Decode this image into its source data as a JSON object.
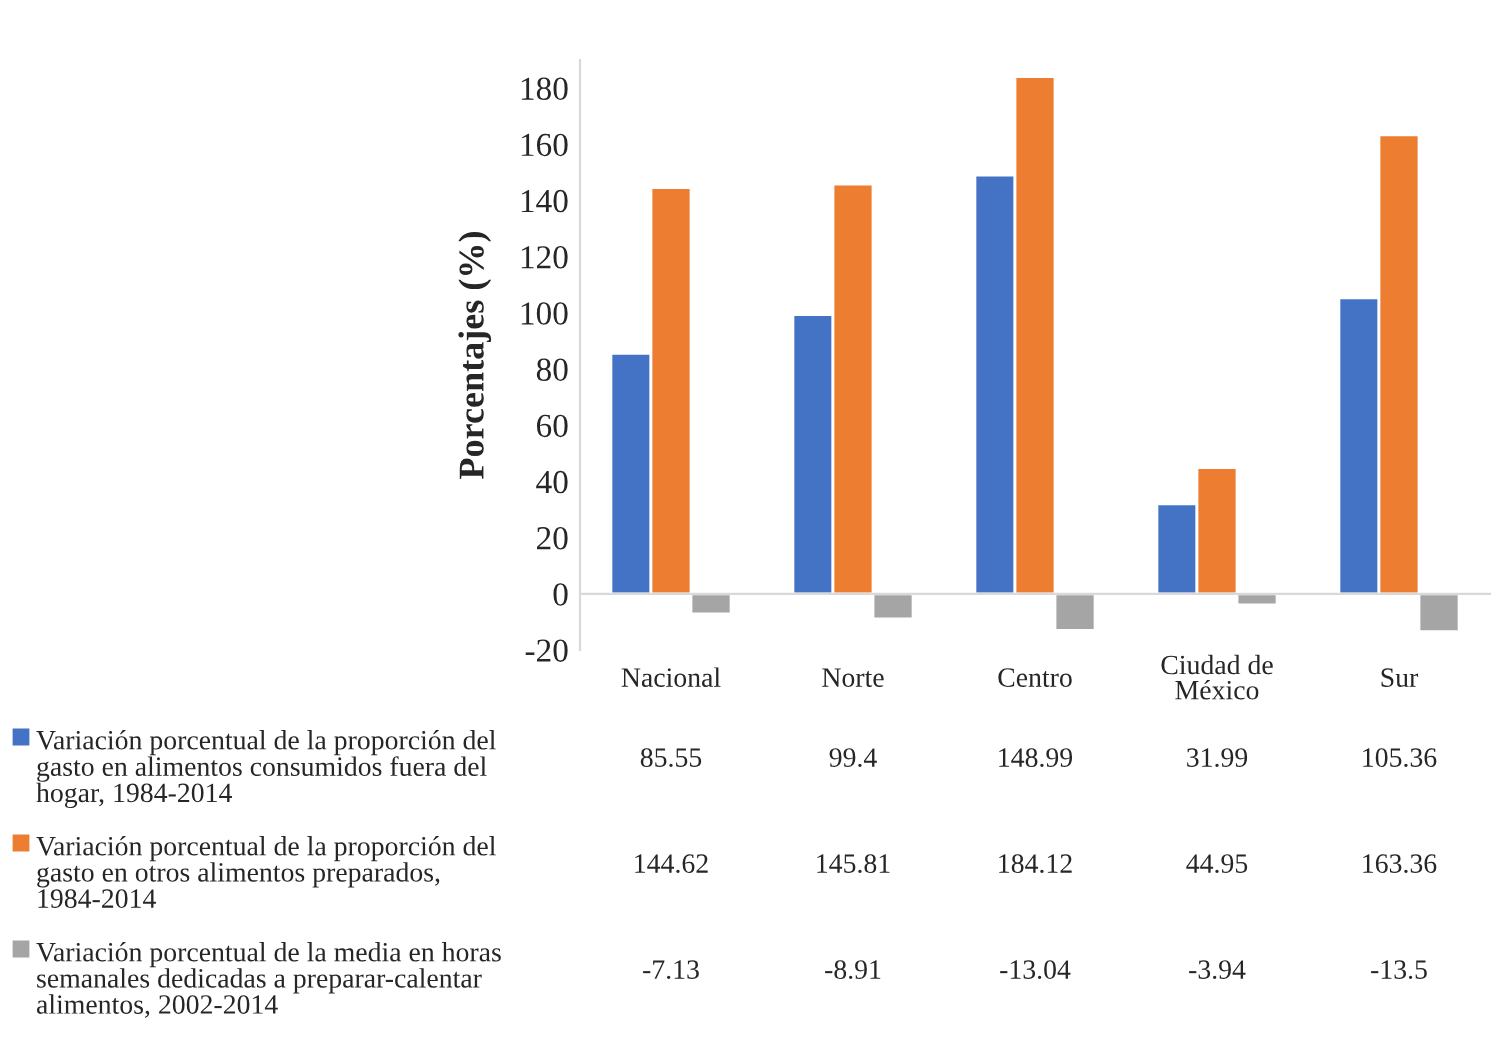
{
  "chart_data": {
    "type": "bar",
    "ylabel": "Porcentajes (%)",
    "categories": [
      "Nacional",
      "Norte",
      "Centro",
      "Ciudad de México",
      "Sur"
    ],
    "series": [
      {
        "name": "Variación porcentual de la proporción del gasto en alimentos consumidos fuera del hogar, 1984-2014",
        "color": "#4472c4",
        "values": [
          85.55,
          99.4,
          148.99,
          31.99,
          105.36
        ]
      },
      {
        "name": "Variación porcentual de la proporción del gasto en otros alimentos preparados, 1984-2014",
        "color": "#ed7d31",
        "values": [
          144.62,
          145.81,
          184.12,
          44.95,
          163.36
        ]
      },
      {
        "name": "Variación porcentual de la media en horas semanales dedicadas a preparar-calentar alimentos, 2002-2014",
        "color": "#a5a5a5",
        "values": [
          -7.13,
          -8.91,
          -13.04,
          -3.94,
          -13.5
        ]
      }
    ],
    "ylim": [
      -20,
      190
    ],
    "yticks": [
      -20,
      0,
      20,
      40,
      60,
      80,
      100,
      120,
      140,
      160,
      180
    ],
    "data_labels": true,
    "grid": false,
    "legend": "bottom"
  }
}
